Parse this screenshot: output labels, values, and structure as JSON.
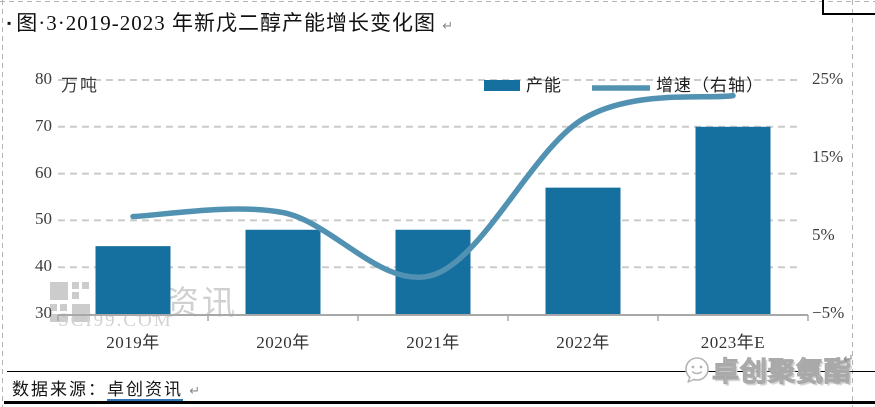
{
  "title": {
    "bullet": "▪",
    "text": "图·3·2019-2023 年新戊二醇产能增长变化图",
    "return_mark": "↵"
  },
  "chart_data": {
    "type": "bar+line",
    "categories": [
      "2019年",
      "2020年",
      "2021年",
      "2022年",
      "2023年E"
    ],
    "series": [
      {
        "name": "产能",
        "type": "bar",
        "axis": "left",
        "unit": "万吨",
        "values": [
          44.5,
          48,
          48,
          57,
          70
        ]
      },
      {
        "name": "增速（右轴）",
        "type": "line",
        "axis": "right",
        "unit": "%",
        "values": [
          7.5,
          8,
          0,
          20,
          23
        ]
      }
    ],
    "left_axis": {
      "label": "万吨",
      "ticks": [
        80,
        70,
        60,
        50,
        40,
        30
      ],
      "min": 30,
      "max": 80
    },
    "right_axis": {
      "tick_labels": [
        "25%",
        "15%",
        "5%",
        "−5%"
      ],
      "ticks": [
        25,
        15,
        5,
        -5
      ],
      "min": -5,
      "max": 25
    },
    "legend_position": "top-center",
    "grid": "horizontal-dashed"
  },
  "watermark": {
    "line1": "卓创资讯",
    "line2": "SCI99.COM"
  },
  "source": {
    "label": "数据来源：",
    "link": "卓创资讯",
    "return_mark": "↵"
  },
  "brand": {
    "text": "卓创聚氨酯"
  },
  "colors": {
    "bar": "#156f9f",
    "line": "#5191b1",
    "grid": "#cbcbcb",
    "axis": "#a8a8a8",
    "link_underline": "#2e75b6"
  }
}
